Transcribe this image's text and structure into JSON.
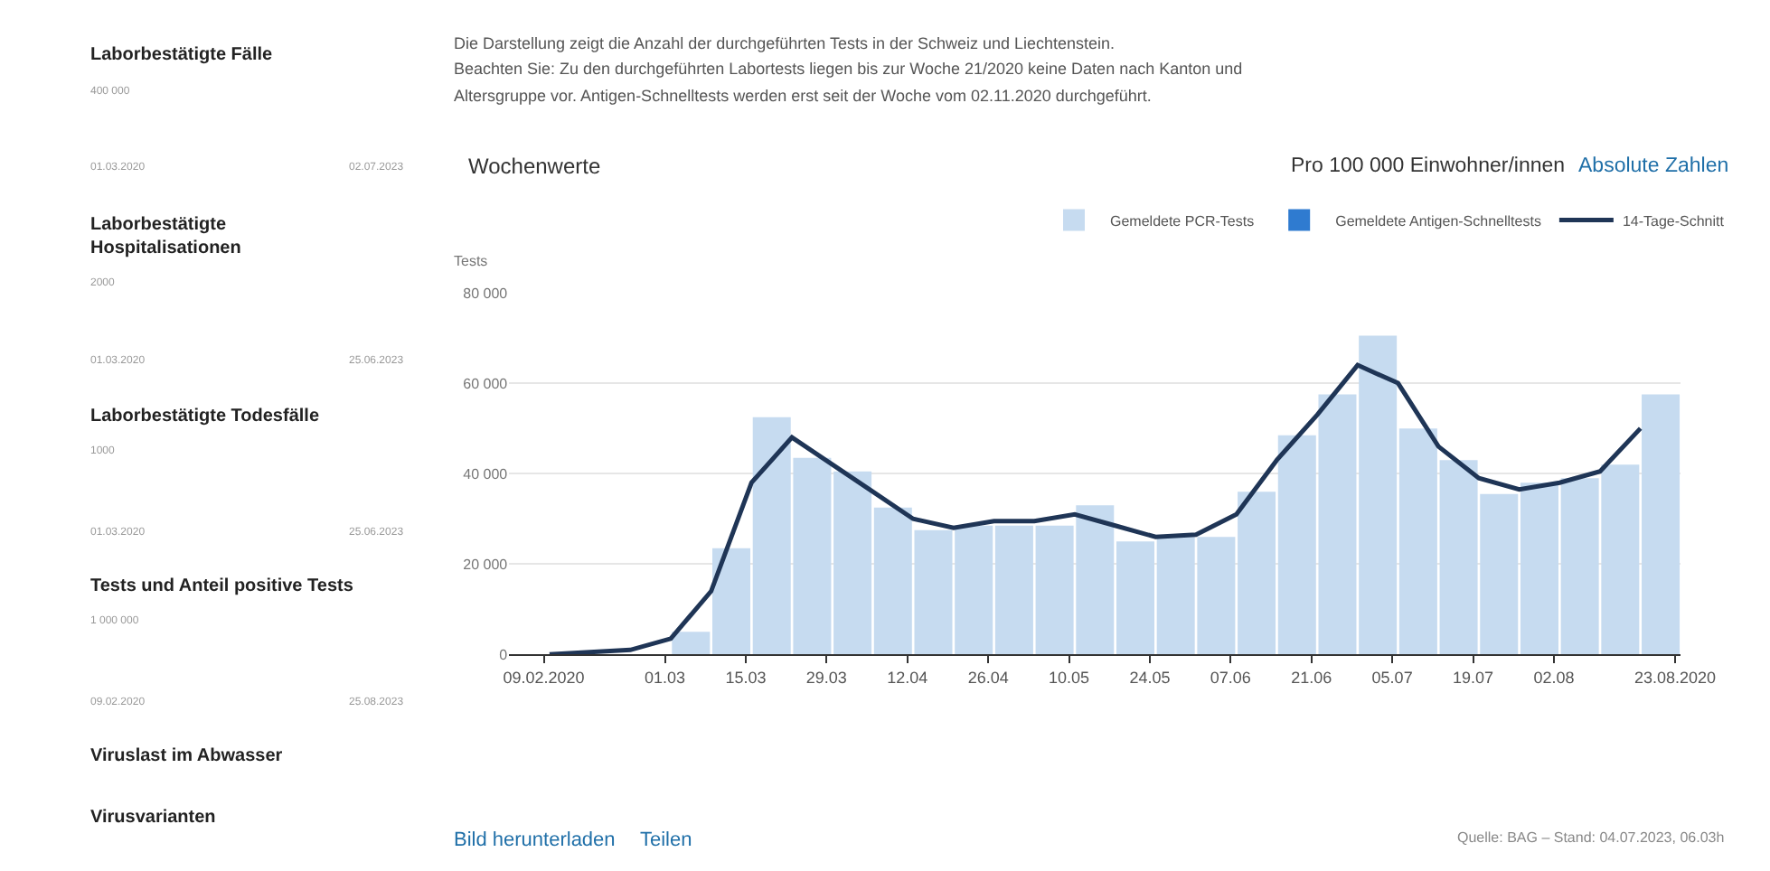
{
  "chart_data": [
    {
      "type": "bar",
      "ylabel": "Tests",
      "annotations": [
        "Die Darstellung zeigt die Anzahl der durchgeführten Tests in der Schweiz und Liechtenstein.",
        "Beachten Sie: Zu den durchgeführten Labortests liegen bis zur Woche 21/2020 keine Daten nach Kanton und",
        "Altersgruppe vor. Antigen-Schnelltests werden erst seit der Woche vom 02.11.2020 durchgeführt.",
        "Wochenwerte",
        "Pro 100 000 Einwohner/innen",
        "Absolute Zahlen",
        "Bild herunterladen",
        "Teilen",
        "Quelle: BAG – Stand: 04.07.2023, 06.03h"
      ],
      "x": [
        "2020-03-02",
        "2020-03-09",
        "2020-03-16",
        "2020-03-23",
        "2020-03-30",
        "2020-04-06",
        "2020-04-13",
        "2020-04-20",
        "2020-04-27",
        "2020-05-04",
        "2020-05-11",
        "2020-05-18",
        "2020-05-25",
        "2020-06-01",
        "2020-06-08",
        "2020-06-15",
        "2020-06-22",
        "2020-06-29",
        "2020-07-06",
        "2020-07-13",
        "2020-07-20",
        "2020-07-27",
        "2020-08-03",
        "2020-08-10",
        "2020-08-17"
      ],
      "series": [
        {
          "name": "Gemeldete PCR-Tests",
          "type": "bar",
          "color": "#c6dbf0",
          "values": [
            5000,
            23500,
            52500,
            43500,
            40500,
            32500,
            27500,
            28500,
            28500,
            28500,
            33000,
            25000,
            26000,
            26000,
            36000,
            48500,
            57500,
            70500,
            50000,
            43000,
            35500,
            38000,
            39000,
            42000,
            57500
          ]
        },
        {
          "name": "Gemeldete Antigen-Schnelltests",
          "type": "bar",
          "color": "#2f7bd0",
          "values": [
            null,
            null,
            null,
            null,
            null,
            null,
            null,
            null,
            null,
            null,
            null,
            null,
            null,
            null,
            null,
            null,
            null,
            null,
            null,
            null,
            null,
            null,
            null,
            null,
            null
          ]
        },
        {
          "name": "14-Tage-Schnitt",
          "type": "line",
          "color": "#1f3556",
          "x": [
            "2020-02-10",
            "2020-02-17",
            "2020-02-24",
            "2020-03-02",
            "2020-03-09",
            "2020-03-16",
            "2020-03-23",
            "2020-03-30",
            "2020-04-06",
            "2020-04-13",
            "2020-04-20",
            "2020-04-27",
            "2020-05-04",
            "2020-05-11",
            "2020-05-18",
            "2020-05-25",
            "2020-06-01",
            "2020-06-08",
            "2020-06-15",
            "2020-06-22",
            "2020-06-29",
            "2020-07-06",
            "2020-07-13",
            "2020-07-20",
            "2020-07-27",
            "2020-08-03",
            "2020-08-10",
            "2020-08-17"
          ],
          "values": [
            0,
            500,
            1000,
            3500,
            14000,
            38000,
            48000,
            42000,
            36000,
            30000,
            28000,
            29500,
            29500,
            31000,
            28500,
            26000,
            26500,
            31000,
            43000,
            53000,
            64000,
            60000,
            46000,
            39000,
            36500,
            38000,
            40500,
            50000
          ]
        }
      ],
      "xlim": [
        "2020-02-03",
        "2020-08-24"
      ],
      "xticks": [
        {
          "value": "2020-02-09",
          "label": "09.02.2020"
        },
        {
          "value": "2020-03-01",
          "label": "01.03"
        },
        {
          "value": "2020-03-15",
          "label": "15.03"
        },
        {
          "value": "2020-03-29",
          "label": "29.03"
        },
        {
          "value": "2020-04-12",
          "label": "12.04"
        },
        {
          "value": "2020-04-26",
          "label": "26.04"
        },
        {
          "value": "2020-05-10",
          "label": "10.05"
        },
        {
          "value": "2020-05-24",
          "label": "24.05"
        },
        {
          "value": "2020-06-07",
          "label": "07.06"
        },
        {
          "value": "2020-06-21",
          "label": "21.06"
        },
        {
          "value": "2020-07-05",
          "label": "05.07"
        },
        {
          "value": "2020-07-19",
          "label": "19.07"
        },
        {
          "value": "2020-08-02",
          "label": "02.08"
        },
        {
          "value": "2020-08-23",
          "label": "23.08.2020"
        }
      ],
      "ylim": [
        0,
        80000
      ],
      "yticks": [
        0,
        {
          "value": 20000,
          "label": "20 000"
        },
        {
          "value": 40000,
          "label": "40 000"
        },
        {
          "value": 60000,
          "label": "60 000"
        },
        {
          "value": 80000,
          "label": "80 000"
        }
      ],
      "grid": "y",
      "legend": "top right"
    },
    {
      "type": "other",
      "annotations": [
        "Laborbestätigte Fälle",
        "400 000",
        "01.03.2020",
        "02.07.2023",
        "Laborbestätigte\nHospitalisationen",
        "2000",
        "01.03.2020",
        "25.06.2023",
        "Laborbestätigte Todesfälle",
        "1000",
        "01.03.2020",
        "25.06.2023",
        "Tests und Anteil positive Tests",
        "1 000 000",
        "09.02.2020",
        "25.08.2023",
        "Viruslast im Abwasser",
        "Virusvarianten"
      ]
    }
  ]
}
